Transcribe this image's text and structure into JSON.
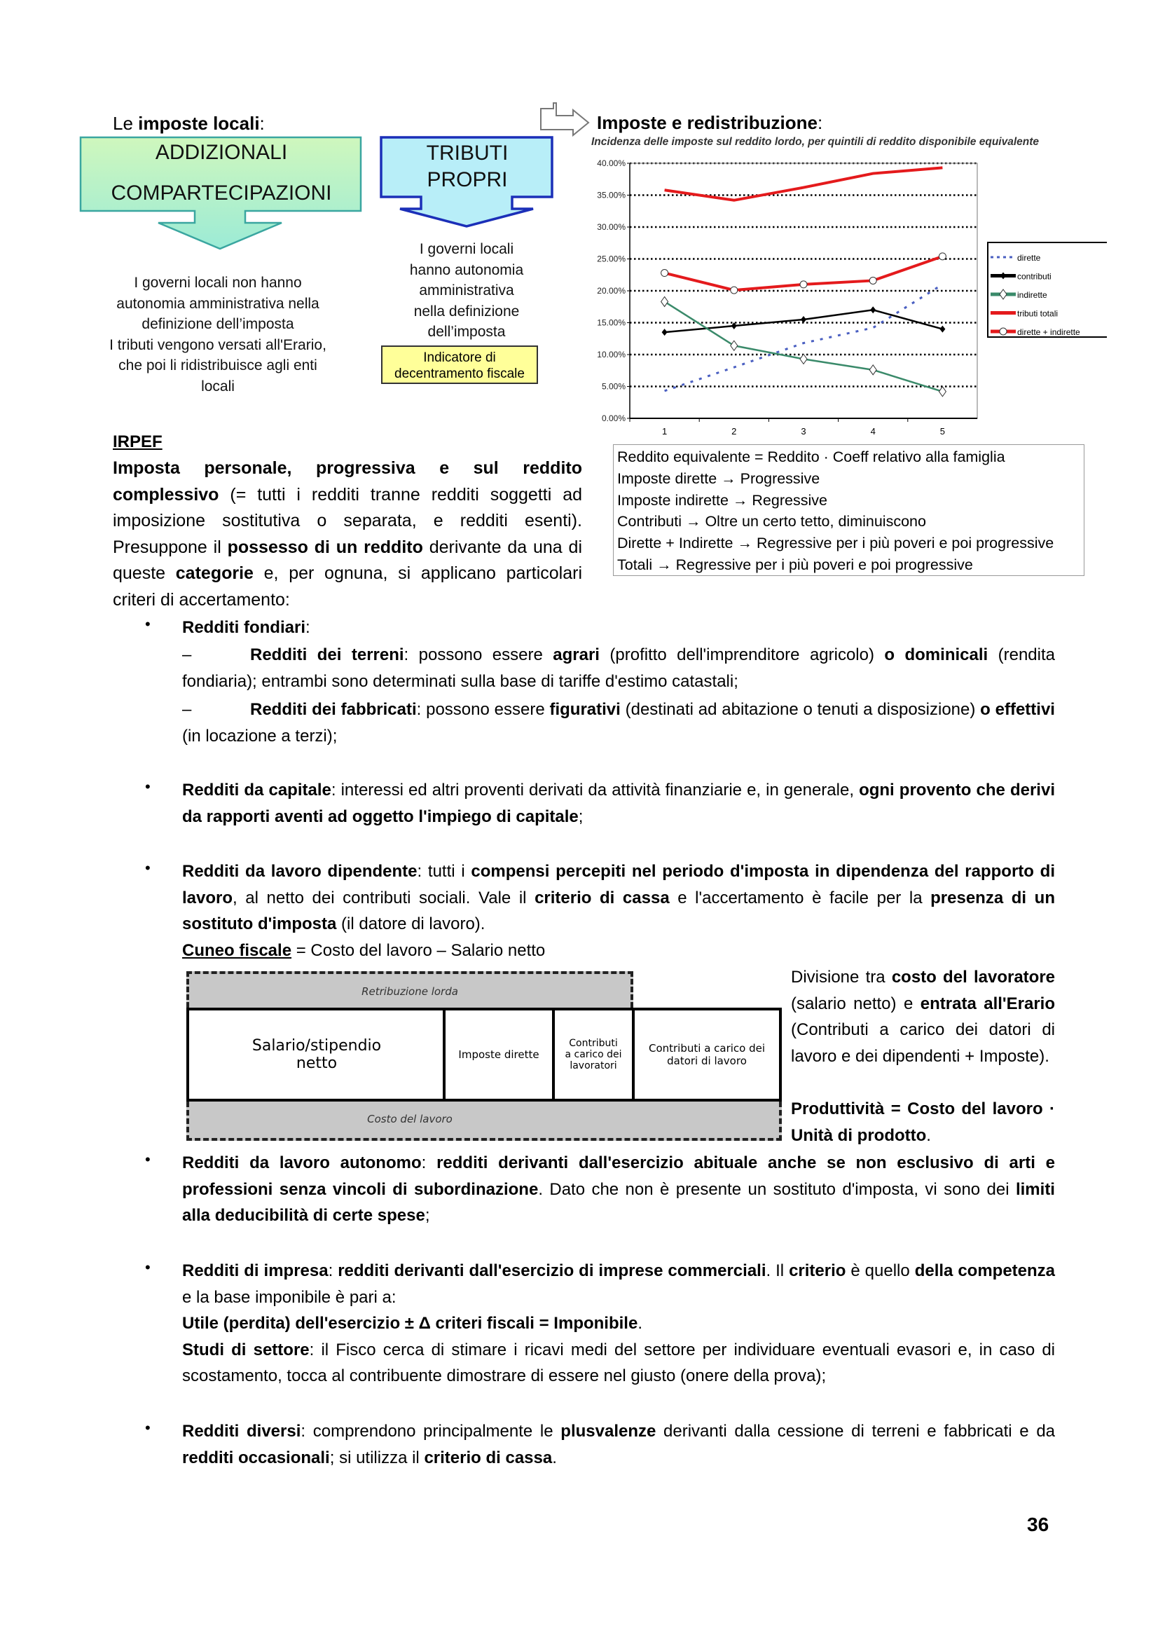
{
  "local_taxes": {
    "heading": [
      [
        "Le ",
        ""
      ],
      [
        "imposte locali",
        ""
      ],
      [
        ":",
        ""
      ]
    ],
    "heading_bold": "imposte locali",
    "addizionali_line1": "ADDIZIONALI",
    "addizionali_line2": "COMPARTECIPAZIONI",
    "tributi_line1": "TRIBUTI",
    "tributi_line2": "PROPRI",
    "left_description": [
      "I governi locali non hanno",
      "autonomia amministrativa nella",
      "definizione dell’imposta",
      "I tributi vengono versati all'Erario,",
      "che poi li ridistribuisce agli enti",
      "locali"
    ],
    "right_description": [
      "I governi locali",
      "hanno autonomia",
      "amministrativa",
      "nella definizione",
      "dell’imposta"
    ],
    "indicator_line1": "Indicatore di",
    "indicator_line2": "decentramento fiscale"
  },
  "redistribution": {
    "heading": "Imposte e redistribuzione",
    "heading_suffix": ":",
    "arrow_icon": "right-arrow-outline-icon",
    "notes": [
      "Reddito equivalente = Reddito · Coeff relativo alla famiglia",
      "Imposte dirette → Progressive",
      "Imposte indirette → Regressive",
      "Contributi → Oltre un certo tetto, diminuiscono",
      "Dirette + Indirette → Regressive per i più poveri e poi progressive",
      "Totali → Regressive per i più poveri e poi progressive"
    ]
  },
  "chart_data": {
    "type": "line",
    "title": "Incidenza delle imposte sul reddito lordo, per quintili di reddito disponibile equivalente",
    "xlabel": "",
    "ylabel": "",
    "categories": [
      "1",
      "2",
      "3",
      "4",
      "5"
    ],
    "ylim": [
      0,
      40
    ],
    "yticks": [
      "0.00%",
      "5.00%",
      "10.00%",
      "15.00%",
      "20.00%",
      "25.00%",
      "30.00%",
      "35.00%",
      "40.00%"
    ],
    "grid": true,
    "legend_position": "right",
    "series": [
      {
        "name": "dirette",
        "values": [
          4.3,
          8.0,
          11.8,
          14.2,
          21.0
        ],
        "color": "#4a5fc1",
        "style": "dotted",
        "marker": "none"
      },
      {
        "name": "contributi",
        "values": [
          13.5,
          14.5,
          15.5,
          17.0,
          14.0
        ],
        "color": "#000000",
        "style": "solid",
        "marker": "diamond-filled"
      },
      {
        "name": "indirette",
        "values": [
          18.3,
          11.4,
          9.3,
          7.6,
          4.2
        ],
        "color": "#3a8a6a",
        "style": "solid",
        "marker": "diamond-open"
      },
      {
        "name": "tributi totali",
        "values": [
          35.8,
          34.2,
          36.2,
          38.4,
          39.3
        ],
        "color": "#e41a1c",
        "style": "solid",
        "marker": "none"
      },
      {
        "name": "dirette + indirette",
        "values": [
          22.8,
          20.1,
          21.0,
          21.6,
          25.4
        ],
        "color": "#e41a1c",
        "style": "solid",
        "marker": "circle-open"
      }
    ]
  },
  "irpef": {
    "heading": "IRPEF",
    "paragraph": [
      [
        "Imposta personale, progressiva e sul reddito complessivo",
        "b"
      ],
      [
        " (= tutti i redditi tranne redditi soggetti ad imposizione sostitutiva o separata, e redditi esenti). Presuppone il ",
        ""
      ],
      [
        "possesso di un reddito",
        "b"
      ],
      [
        " derivante da una di queste ",
        ""
      ],
      [
        "categorie",
        "b"
      ],
      [
        " e, per ognuna, si applicano particolari criteri di accertamento:",
        ""
      ]
    ]
  },
  "bullets": {
    "fondiari": [
      [
        "Redditi fondiari",
        "b"
      ],
      [
        ":",
        ""
      ]
    ],
    "terreni": [
      [
        "Redditi dei terreni",
        "b"
      ],
      [
        ": possono essere ",
        ""
      ],
      [
        "agrari",
        "b"
      ],
      [
        " (profitto dell'imprenditore agricolo) ",
        ""
      ],
      [
        "o dominicali",
        "b"
      ],
      [
        " (rendita fondiaria); entrambi sono determinati sulla base di tariffe d'estimo catastali;",
        ""
      ]
    ],
    "fabbricati": [
      [
        "Redditi dei fabbricati",
        "b"
      ],
      [
        ": possono essere ",
        ""
      ],
      [
        "figurativi",
        "b"
      ],
      [
        " (destinati ad abitazione o tenuti a disposizione) ",
        ""
      ],
      [
        "o effettivi",
        "b"
      ],
      [
        " (in locazione a terzi);",
        ""
      ]
    ],
    "capitale": [
      [
        "Redditi da capitale",
        "b"
      ],
      [
        ": interessi ed altri proventi derivati da attività finanziarie e, in generale, ",
        ""
      ],
      [
        "ogni provento che derivi da rapporti aventi ad oggetto l'impiego di capitale",
        "b"
      ],
      [
        ";",
        ""
      ]
    ],
    "dipendente": [
      [
        "Redditi da lavoro dipendente",
        "b"
      ],
      [
        ": tutti i ",
        ""
      ],
      [
        "compensi percepiti nel periodo d'imposta in dipendenza del rapporto di lavoro",
        "b"
      ],
      [
        ", al netto dei contributi sociali. Vale il ",
        ""
      ],
      [
        "criterio di cassa",
        "b"
      ],
      [
        " e l'accertamento è facile per la ",
        ""
      ],
      [
        "presenza di un sostituto d'imposta",
        "b"
      ],
      [
        " (il datore di lavoro).",
        ""
      ]
    ],
    "cuneo": [
      [
        "Cuneo fiscale",
        "bu"
      ],
      [
        " = Costo del lavoro – Salario netto",
        ""
      ]
    ],
    "cuneo_side": [
      [
        "Divisione tra ",
        ""
      ],
      [
        "costo del lavoratore",
        "b"
      ],
      [
        " (salario netto) e ",
        ""
      ],
      [
        "entrata all'Erario",
        "b"
      ],
      [
        " (Contributi a carico dei datori di lavoro e dei dipendenti + Imposte).",
        ""
      ]
    ],
    "produttivita": [
      [
        "Produttività = Costo del lavoro · Unità di prodotto",
        "b"
      ],
      [
        ".",
        ""
      ]
    ],
    "autonomo": [
      [
        "Redditi da lavoro autonomo",
        "b"
      ],
      [
        ": ",
        ""
      ],
      [
        "redditi derivanti dall'esercizio abituale anche se non esclusivo di arti e professioni senza vincoli di subordinazione",
        "b"
      ],
      [
        ". Dato che non è presente un sostituto d'imposta, vi sono dei ",
        ""
      ],
      [
        "limiti alla deducibilità di certe spese",
        "b"
      ],
      [
        ";",
        ""
      ]
    ],
    "impresa": [
      [
        "Redditi di impresa",
        "b"
      ],
      [
        ": ",
        ""
      ],
      [
        "redditi derivanti dall'esercizio di imprese commerciali",
        "b"
      ],
      [
        ". Il ",
        ""
      ],
      [
        "criterio",
        "b"
      ],
      [
        " è quello ",
        ""
      ],
      [
        "della competenza",
        "b"
      ],
      [
        " e la base imponibile è pari a:",
        ""
      ]
    ],
    "impresa_formula": [
      [
        "Utile (perdita) dell'esercizio ± Δ criteri fiscali = Imponibile",
        "b"
      ],
      [
        ".",
        ""
      ]
    ],
    "impresa_studi": [
      [
        "Studi di settore",
        "b"
      ],
      [
        ": il Fisco cerca di stimare i ricavi medi del settore per individuare eventuali evasori e, in caso di scostamento, tocca al contribuente dimostrare di essere nel giusto (onere della prova);",
        ""
      ]
    ],
    "diversi": [
      [
        "Redditi diversi",
        "b"
      ],
      [
        ": comprendono principalmente le ",
        ""
      ],
      [
        "plusvalenze",
        "b"
      ],
      [
        " derivanti dalla cessione di terreni e fabbricati e da ",
        ""
      ],
      [
        "redditi occasionali",
        "b"
      ],
      [
        "; si utilizza il ",
        ""
      ],
      [
        "criterio di cassa",
        "b"
      ],
      [
        ".",
        ""
      ]
    ],
    "bullet_symbol": "•",
    "dash_symbol": "–"
  },
  "wedge": {
    "top": "Retribuzione lorda",
    "cells": [
      "Salario/stipendio netto",
      "Imposte dirette",
      "Contributi a carico dei lavoratori",
      "Contributi a carico dei datori di lavoro"
    ],
    "bottom": "Costo del lavoro"
  },
  "page_number": "36"
}
